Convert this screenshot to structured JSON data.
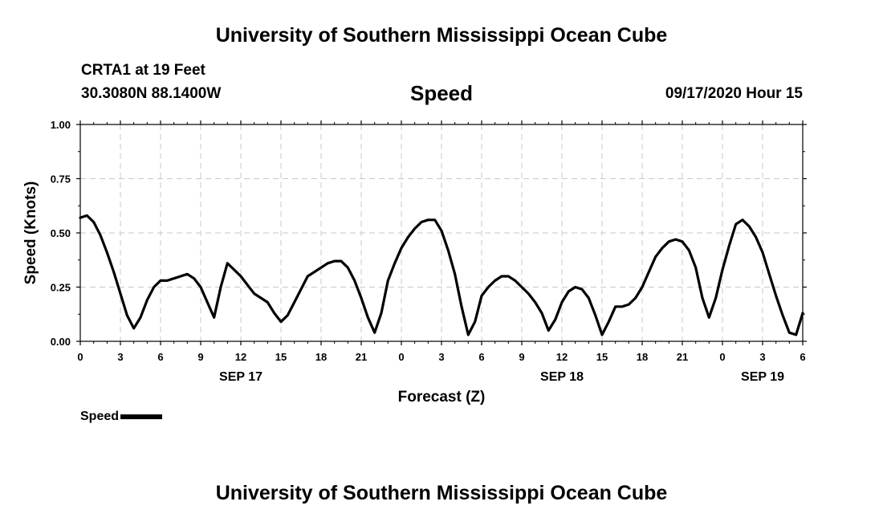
{
  "header": {
    "title": "University of Southern Mississippi Ocean Cube",
    "station": "CRTA1 at 19 Feet",
    "coords": "30.3080N 88.1400W",
    "variable": "Speed",
    "datetime": "09/17/2020 Hour 15"
  },
  "footer": {
    "title": "University of Southern Mississippi Ocean Cube"
  },
  "legend": {
    "label": "Speed"
  },
  "chart_data": {
    "type": "line",
    "title": "Speed",
    "xlabel": "Forecast (Z)",
    "ylabel": "Speed (Knots)",
    "xlim": [
      0,
      54
    ],
    "ylim": [
      0,
      1
    ],
    "grid": true,
    "yticks": [
      0,
      0.25,
      0.5,
      0.75,
      1.0
    ],
    "ytick_labels": [
      "0.00",
      "0.25",
      "0.50",
      "0.75",
      "1.00"
    ],
    "xticks": [
      0,
      3,
      6,
      9,
      12,
      15,
      18,
      21,
      24,
      27,
      30,
      33,
      36,
      39,
      42,
      45,
      48,
      51,
      54
    ],
    "xtick_labels": [
      "0",
      "3",
      "6",
      "9",
      "12",
      "15",
      "18",
      "21",
      "0",
      "3",
      "6",
      "9",
      "12",
      "15",
      "18",
      "21",
      "0",
      "3",
      "6"
    ],
    "date_labels": [
      {
        "x": 12,
        "label": "SEP 17"
      },
      {
        "x": 36,
        "label": "SEP 18"
      },
      {
        "x": 51,
        "label": "SEP 19"
      }
    ],
    "line_color": "#000000",
    "series": [
      {
        "name": "Speed",
        "x": [
          0,
          0.5,
          1,
          1.5,
          2,
          2.5,
          3,
          3.5,
          4,
          4.5,
          5,
          5.5,
          6,
          6.5,
          7,
          7.5,
          8,
          8.5,
          9,
          9.5,
          10,
          10.5,
          11,
          11.5,
          12,
          12.5,
          13,
          13.5,
          14,
          14.5,
          15,
          15.5,
          16,
          16.5,
          17,
          17.5,
          18,
          18.5,
          19,
          19.5,
          20,
          20.5,
          21,
          21.5,
          22,
          22.5,
          23,
          23.5,
          24,
          24.5,
          25,
          25.5,
          26,
          26.5,
          27,
          27.5,
          28,
          28.5,
          29,
          29.5,
          30,
          30.5,
          31,
          31.5,
          32,
          32.5,
          33,
          33.5,
          34,
          34.5,
          35,
          35.5,
          36,
          36.5,
          37,
          37.5,
          38,
          38.5,
          39,
          39.5,
          40,
          40.5,
          41,
          41.5,
          42,
          42.5,
          43,
          43.5,
          44,
          44.5,
          45,
          45.5,
          46,
          46.5,
          47,
          47.5,
          48,
          48.5,
          49,
          49.5,
          50,
          50.5,
          51,
          51.5,
          52,
          52.5,
          53,
          53.5,
          54
        ],
        "values": [
          0.57,
          0.58,
          0.55,
          0.49,
          0.41,
          0.32,
          0.22,
          0.12,
          0.06,
          0.11,
          0.19,
          0.25,
          0.28,
          0.28,
          0.29,
          0.3,
          0.31,
          0.29,
          0.25,
          0.18,
          0.11,
          0.25,
          0.36,
          0.33,
          0.3,
          0.26,
          0.22,
          0.2,
          0.18,
          0.13,
          0.09,
          0.12,
          0.18,
          0.24,
          0.3,
          0.32,
          0.34,
          0.36,
          0.37,
          0.37,
          0.34,
          0.28,
          0.2,
          0.11,
          0.04,
          0.13,
          0.28,
          0.36,
          0.43,
          0.48,
          0.52,
          0.55,
          0.56,
          0.56,
          0.51,
          0.42,
          0.31,
          0.16,
          0.03,
          0.09,
          0.21,
          0.25,
          0.28,
          0.3,
          0.3,
          0.28,
          0.25,
          0.22,
          0.18,
          0.13,
          0.05,
          0.1,
          0.18,
          0.23,
          0.25,
          0.24,
          0.2,
          0.12,
          0.03,
          0.09,
          0.16,
          0.16,
          0.17,
          0.2,
          0.25,
          0.32,
          0.39,
          0.43,
          0.46,
          0.47,
          0.46,
          0.42,
          0.34,
          0.2,
          0.11,
          0.2,
          0.33,
          0.44,
          0.54,
          0.56,
          0.53,
          0.48,
          0.41,
          0.31,
          0.21,
          0.12,
          0.04,
          0.03,
          0.13
        ]
      }
    ]
  }
}
